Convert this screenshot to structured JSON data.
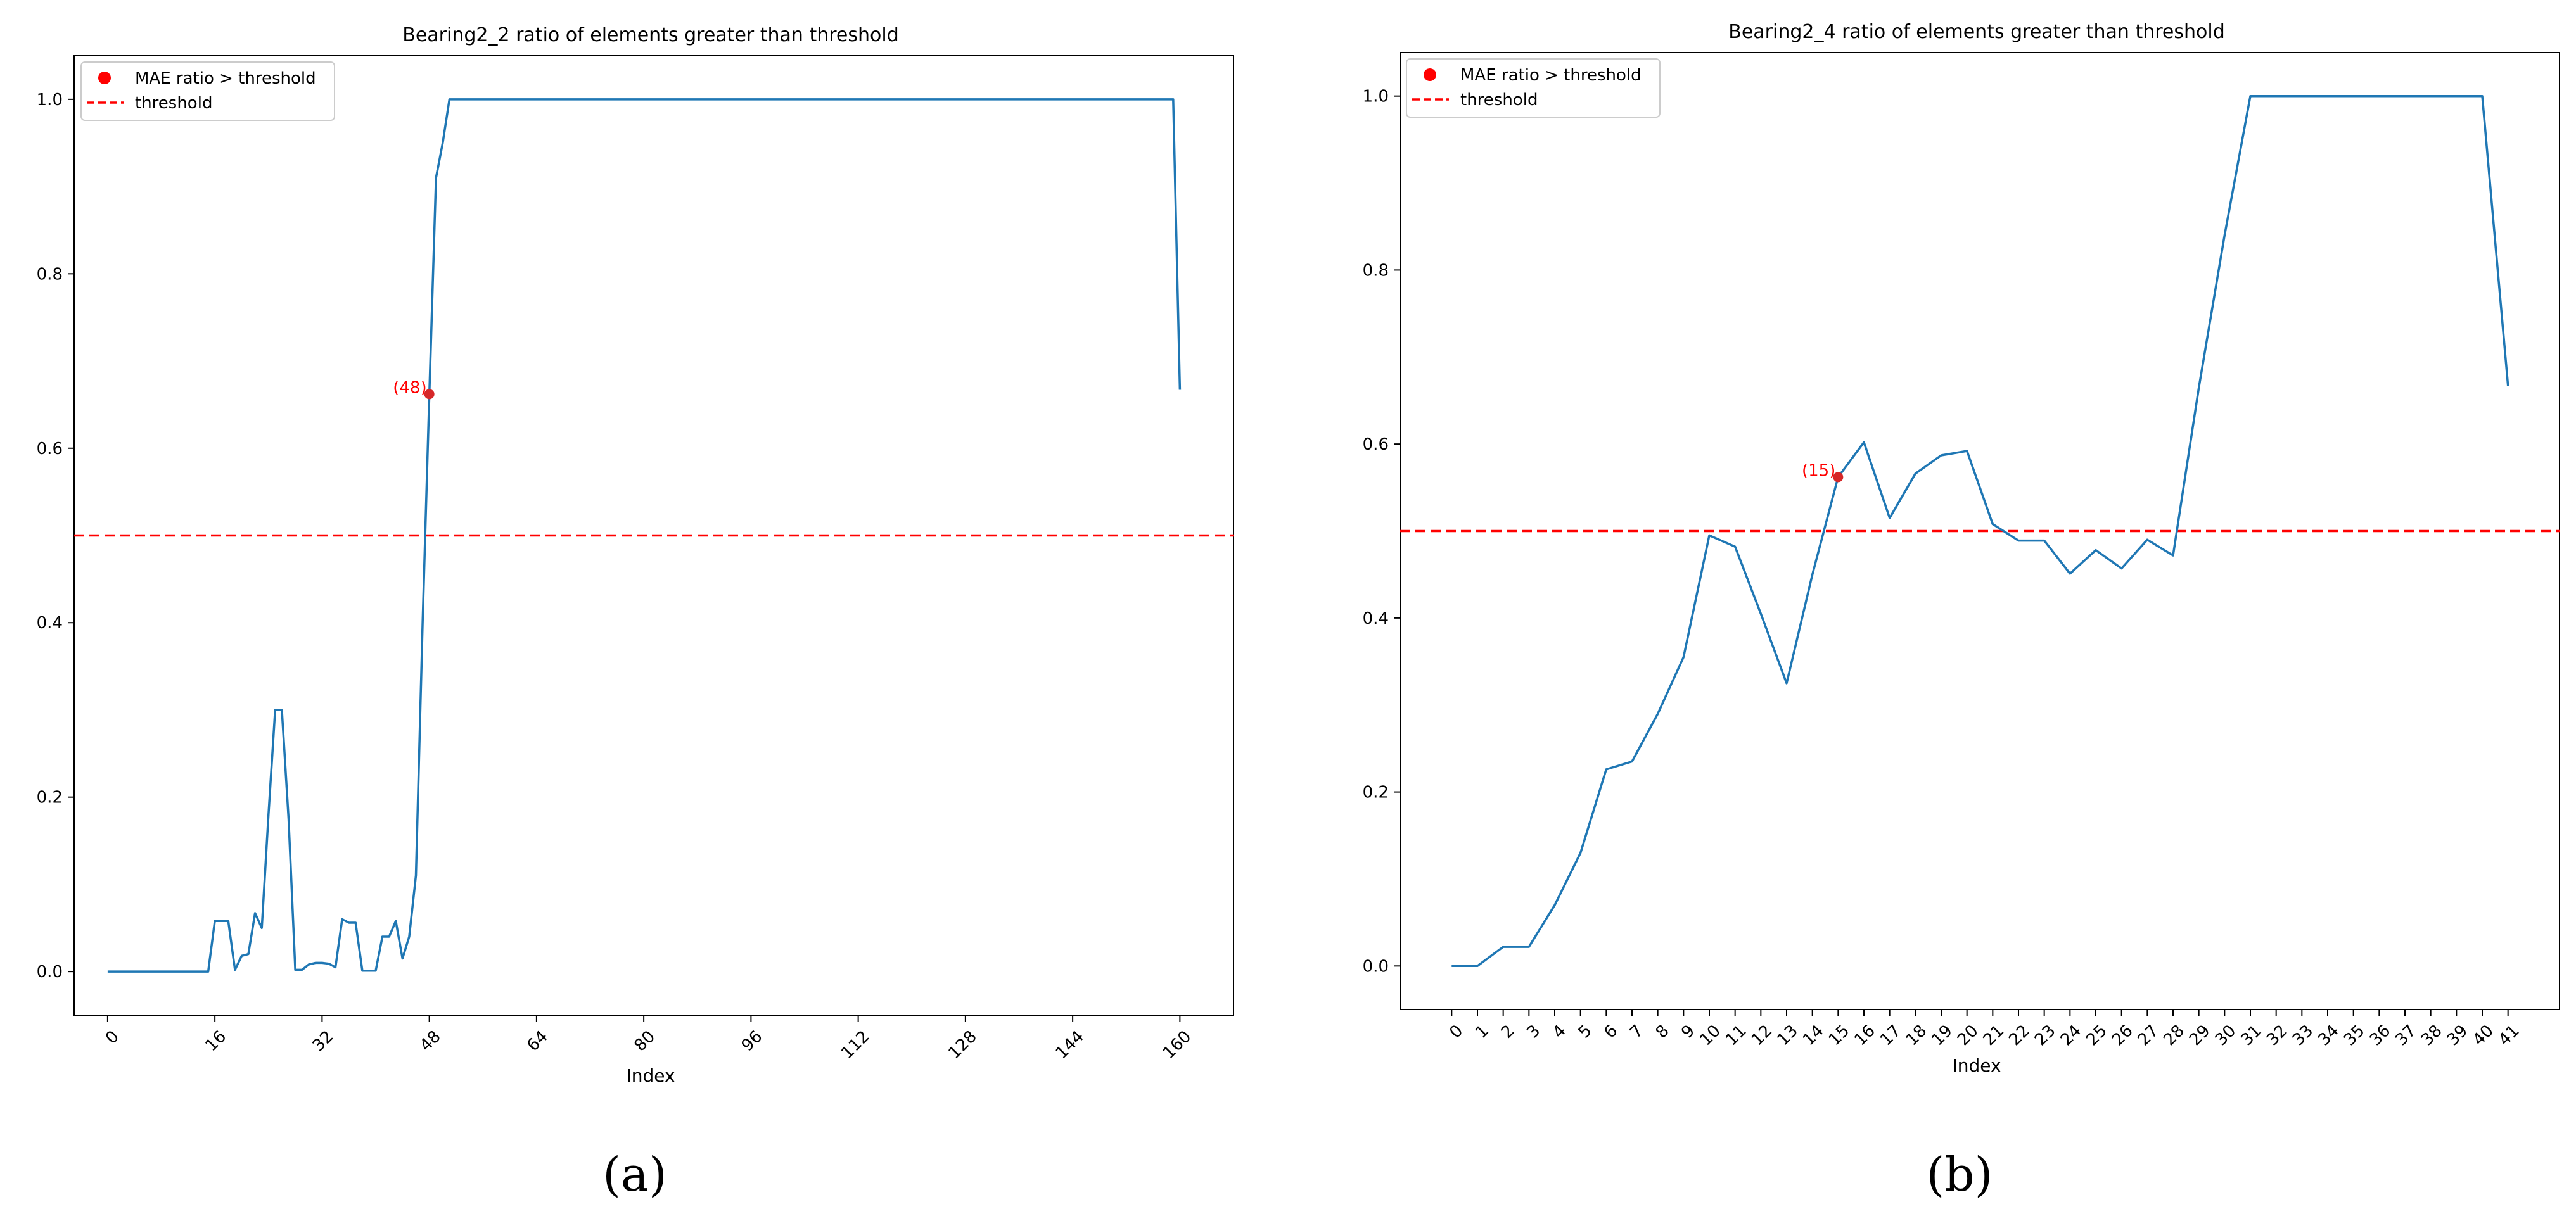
{
  "figure": {
    "panel_captions": [
      "(a)",
      "(b)"
    ]
  },
  "chart_data": [
    {
      "type": "line",
      "title": "Bearing2_2 ratio of elements greater than threshold",
      "xlabel": "Index",
      "ylabel": "",
      "xlim": [
        -5,
        168
      ],
      "ylim": [
        -0.05,
        1.05
      ],
      "x_ticks": [
        0,
        16,
        32,
        48,
        64,
        80,
        96,
        112,
        128,
        144,
        160
      ],
      "x_tick_labels": [
        "0",
        "16",
        "32",
        "48",
        "64",
        "80",
        "96",
        "112",
        "128",
        "144",
        "160"
      ],
      "y_ticks": [
        0.0,
        0.2,
        0.4,
        0.6,
        0.8,
        1.0
      ],
      "y_tick_labels": [
        "0.0",
        "0.2",
        "0.4",
        "0.6",
        "0.8",
        "1.0"
      ],
      "x_tick_rotation": 45,
      "grid": false,
      "legend_position": "top-left",
      "series_color": "#1f77b4",
      "series": [
        {
          "x": [
            0,
            1,
            2,
            3,
            4,
            5,
            6,
            7,
            8,
            9,
            10,
            11,
            12,
            13,
            14,
            15,
            16,
            17,
            18,
            19,
            20,
            21,
            22,
            23,
            24,
            25,
            26,
            27,
            28,
            29,
            30,
            31,
            32,
            33,
            34,
            35,
            36,
            37,
            38,
            39,
            40,
            41,
            42,
            43,
            44,
            45,
            46,
            47,
            48,
            49,
            50,
            51,
            52,
            53,
            54,
            55,
            56,
            57,
            58,
            59,
            60,
            61,
            62,
            63,
            64,
            65,
            66,
            67,
            68,
            69,
            70,
            71,
            72,
            73,
            74,
            75,
            76,
            77,
            78,
            79,
            80,
            81,
            82,
            83,
            84,
            85,
            86,
            87,
            88,
            89,
            90,
            91,
            92,
            93,
            94,
            95,
            96,
            97,
            98,
            99,
            100,
            101,
            102,
            103,
            104,
            105,
            106,
            107,
            108,
            109,
            110,
            111,
            112,
            113,
            114,
            115,
            116,
            117,
            118,
            119,
            120,
            121,
            122,
            123,
            124,
            125,
            126,
            127,
            128,
            129,
            130,
            131,
            132,
            133,
            134,
            135,
            136,
            137,
            138,
            139,
            140,
            141,
            142,
            143,
            144,
            145,
            146,
            147,
            148,
            149,
            150,
            151,
            152,
            153,
            154,
            155,
            156,
            157,
            158,
            159,
            160
          ],
          "y": [
            0,
            0,
            0,
            0,
            0,
            0,
            0,
            0,
            0,
            0,
            0,
            0,
            0,
            0,
            0,
            0,
            0.058,
            0.058,
            0.058,
            0.002,
            0.018,
            0.02,
            0.067,
            0.05,
            0.18,
            0.3,
            0.3,
            0.175,
            0.002,
            0.002,
            0.008,
            0.01,
            0.01,
            0.009,
            0.005,
            0.06,
            0.056,
            0.056,
            0.001,
            0.001,
            0.001,
            0.04,
            0.04,
            0.058,
            0.015,
            0.04,
            0.11,
            0.4,
            0.66,
            0.91,
            0.95,
            1,
            1,
            1,
            1,
            1,
            1,
            1,
            1,
            1,
            1,
            1,
            1,
            1,
            1,
            1,
            1,
            1,
            1,
            1,
            1,
            1,
            1,
            1,
            1,
            1,
            1,
            1,
            1,
            1,
            1,
            1,
            1,
            1,
            1,
            1,
            1,
            1,
            1,
            1,
            1,
            1,
            1,
            1,
            1,
            1,
            1,
            1,
            1,
            1,
            1,
            1,
            1,
            1,
            1,
            1,
            1,
            1,
            1,
            1,
            1,
            1,
            1,
            1,
            1,
            1,
            1,
            1,
            1,
            1,
            1,
            1,
            1,
            1,
            1,
            1,
            1,
            1,
            1,
            1,
            1,
            1,
            1,
            1,
            1,
            1,
            1,
            1,
            1,
            1,
            1,
            1,
            1,
            1,
            1,
            1,
            1,
            1,
            1,
            1,
            1,
            1,
            1,
            1,
            1,
            1,
            1,
            1,
            1,
            1,
            0.667
          ]
        },
        {
          "name": "threshold",
          "type": "hline",
          "y": 0.5,
          "color": "#ff0000",
          "style": "dashed"
        },
        {
          "name": "MAE ratio > threshold",
          "type": "scatter",
          "x": [
            48
          ],
          "y": [
            0.662
          ],
          "color": "#ff0000"
        }
      ],
      "annotations": [
        {
          "text": "(48)",
          "x": 48,
          "y": 0.662,
          "color": "#ff0000"
        }
      ]
    },
    {
      "type": "line",
      "title": "Bearing2_4 ratio of elements greater than threshold",
      "xlabel": "Index",
      "ylabel": "",
      "xlim": [
        -2,
        43
      ],
      "ylim": [
        -0.05,
        1.05
      ],
      "x_ticks": [
        0,
        1,
        2,
        3,
        4,
        5,
        6,
        7,
        8,
        9,
        10,
        11,
        12,
        13,
        14,
        15,
        16,
        17,
        18,
        19,
        20,
        21,
        22,
        23,
        24,
        25,
        26,
        27,
        28,
        29,
        30,
        31,
        32,
        33,
        34,
        35,
        36,
        37,
        38,
        39,
        40,
        41
      ],
      "x_tick_labels": [
        "0",
        "1",
        "2",
        "3",
        "4",
        "5",
        "6",
        "7",
        "8",
        "9",
        "10",
        "11",
        "12",
        "13",
        "14",
        "15",
        "16",
        "17",
        "18",
        "19",
        "20",
        "21",
        "22",
        "23",
        "24",
        "25",
        "26",
        "27",
        "28",
        "29",
        "30",
        "31",
        "32",
        "33",
        "34",
        "35",
        "36",
        "37",
        "38",
        "39",
        "40",
        "41"
      ],
      "y_ticks": [
        0.0,
        0.2,
        0.4,
        0.6,
        0.8,
        1.0
      ],
      "y_tick_labels": [
        "0.0",
        "0.2",
        "0.4",
        "0.6",
        "0.8",
        "1.0"
      ],
      "x_tick_rotation": 45,
      "grid": false,
      "legend_position": "top-left",
      "series_color": "#1f77b4",
      "series": [
        {
          "x": [
            0,
            1,
            2,
            3,
            4,
            5,
            6,
            7,
            8,
            9,
            10,
            11,
            12,
            13,
            14,
            15,
            16,
            17,
            18,
            19,
            20,
            21,
            22,
            23,
            24,
            25,
            26,
            27,
            28,
            29,
            30,
            31,
            32,
            33,
            34,
            35,
            36,
            37,
            38,
            39,
            40,
            41
          ],
          "y": [
            0,
            0,
            0.022,
            0.022,
            0.07,
            0.13,
            0.226,
            0.235,
            0.29,
            0.355,
            0.495,
            0.482,
            0.405,
            0.325,
            0.45,
            0.562,
            0.602,
            0.515,
            0.566,
            0.587,
            0.592,
            0.508,
            0.489,
            0.489,
            0.451,
            0.478,
            0.457,
            0.49,
            0.472,
            0.665,
            0.84,
            1,
            1,
            1,
            1,
            1,
            1,
            1,
            1,
            1,
            1,
            0.667
          ]
        },
        {
          "name": "threshold",
          "type": "hline",
          "y": 0.5,
          "color": "#ff0000",
          "style": "dashed"
        },
        {
          "name": "MAE ratio > threshold",
          "type": "scatter",
          "x": [
            15
          ],
          "y": [
            0.562
          ],
          "color": "#ff0000"
        }
      ],
      "annotations": [
        {
          "text": "(15)",
          "x": 15,
          "y": 0.562,
          "color": "#ff0000"
        }
      ]
    }
  ]
}
